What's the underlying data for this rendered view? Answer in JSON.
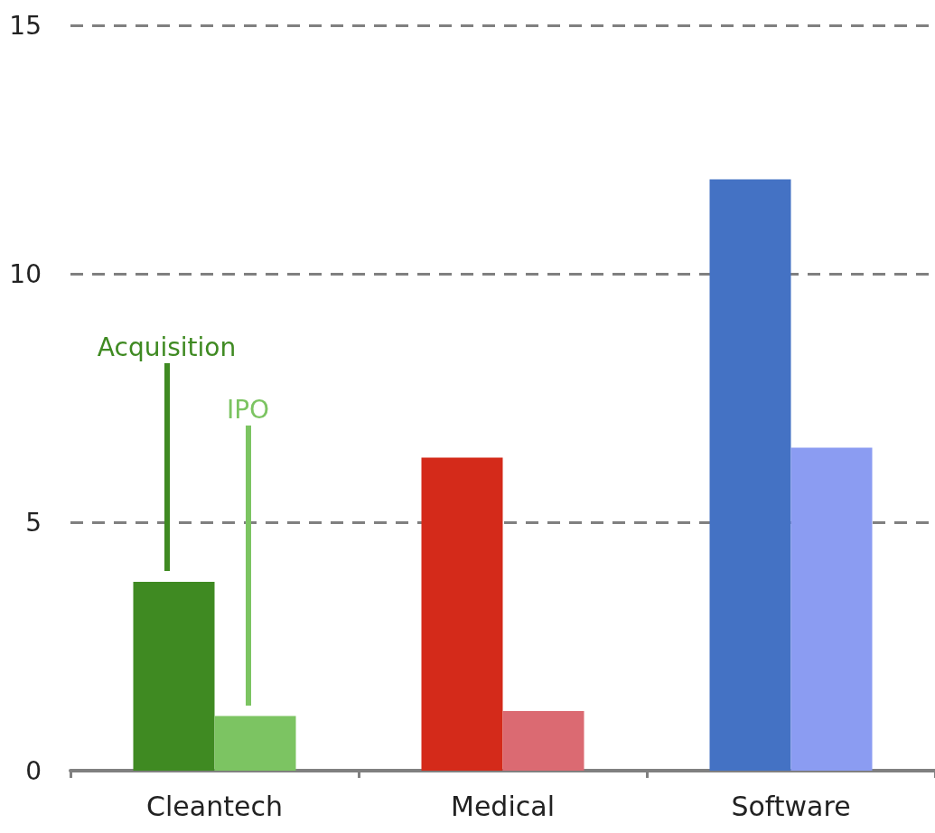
{
  "chart_data": {
    "type": "bar",
    "categories": [
      "Cleantech",
      "Medical",
      "Software"
    ],
    "series": [
      {
        "name": "Acquisition",
        "colors": [
          "#3f8a22",
          "#d42a1a",
          "#4472c4"
        ],
        "values": [
          3.8,
          6.3,
          11.9
        ]
      },
      {
        "name": "IPO",
        "colors": [
          "#7cc462",
          "#db6a72",
          "#8b9cf2"
        ],
        "values": [
          1.1,
          1.2,
          6.5
        ]
      }
    ],
    "ylim": [
      0,
      15
    ],
    "yticks": [
      0,
      5,
      10,
      15
    ],
    "grid": "y",
    "legend": false
  }
}
